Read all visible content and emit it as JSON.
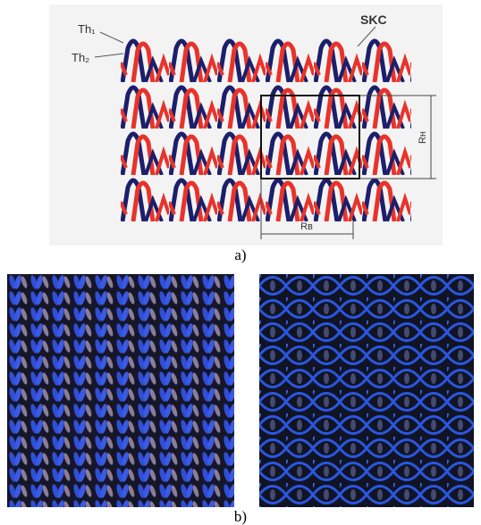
{
  "figure": {
    "diagram": {
      "skc": "SKC",
      "th1": "Th₁",
      "th2": "Th₂",
      "rh": "Rн",
      "rb": "Rв"
    },
    "caption_a": "a)",
    "caption_b": "b)"
  }
}
